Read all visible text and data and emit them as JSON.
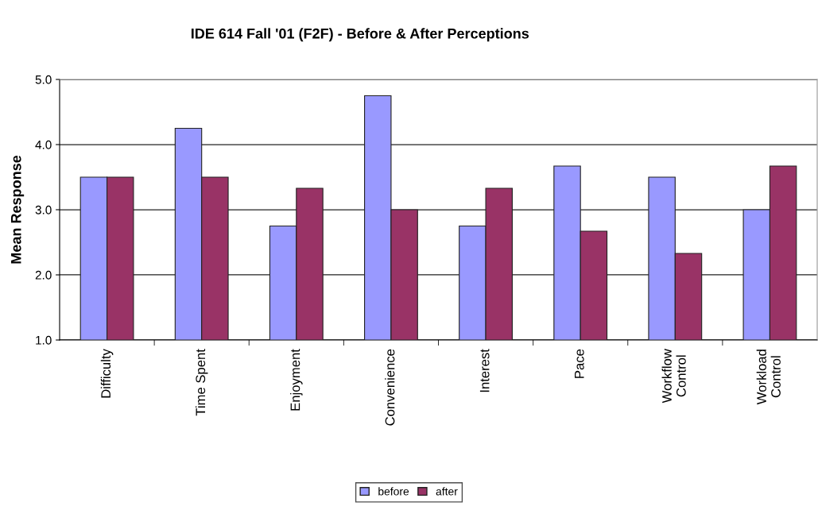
{
  "chart_data": {
    "type": "bar",
    "title": "IDE 614 Fall '01 (F2F) - Before & After Perceptions",
    "ylabel": "Mean Response",
    "categories": [
      "Difficulty",
      "Time Spent",
      "Enjoyment",
      "Convenience",
      "Interest",
      "Pace",
      "Workflow\nControl",
      "Workload\nControl"
    ],
    "series": [
      {
        "name": "before",
        "color": "#9999ff",
        "values": [
          3.5,
          4.25,
          2.75,
          4.75,
          2.75,
          3.67,
          3.5,
          3.0
        ]
      },
      {
        "name": "after",
        "color": "#993366",
        "values": [
          3.5,
          3.5,
          3.33,
          3.0,
          3.33,
          2.67,
          2.33,
          3.67
        ]
      }
    ],
    "ylim": [
      1.0,
      5.0
    ],
    "yticks": [
      {
        "value": 1,
        "label": "1.0"
      },
      {
        "value": 2,
        "label": "2.0"
      },
      {
        "value": 3,
        "label": "3.0"
      },
      {
        "value": 4,
        "label": "4.0"
      },
      {
        "value": 5,
        "label": "5.0"
      }
    ],
    "grid": "y",
    "legend": "bottom"
  }
}
